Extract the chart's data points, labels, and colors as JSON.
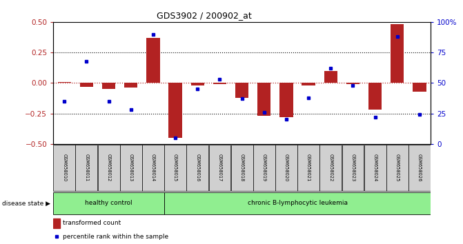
{
  "title": "GDS3902 / 200902_at",
  "samples": [
    "GSM658010",
    "GSM658011",
    "GSM658012",
    "GSM658013",
    "GSM658014",
    "GSM658015",
    "GSM658016",
    "GSM658017",
    "GSM658018",
    "GSM658019",
    "GSM658020",
    "GSM658021",
    "GSM658022",
    "GSM658023",
    "GSM658024",
    "GSM658025",
    "GSM658026"
  ],
  "transformed_count": [
    0.01,
    -0.03,
    -0.05,
    -0.04,
    0.37,
    -0.45,
    -0.02,
    -0.01,
    -0.12,
    -0.27,
    -0.28,
    -0.02,
    0.1,
    -0.01,
    -0.22,
    0.48,
    -0.07
  ],
  "percentile_rank": [
    35,
    68,
    35,
    28,
    90,
    5,
    45,
    53,
    37,
    26,
    20,
    38,
    62,
    48,
    22,
    88,
    24
  ],
  "group_labels": [
    "healthy control",
    "chronic B-lymphocytic leukemia"
  ],
  "healthy_count": 5,
  "bar_color": "#b22222",
  "dot_color": "#0000cc",
  "ylim_left": [
    -0.5,
    0.5
  ],
  "ylim_right": [
    0,
    100
  ],
  "yticks_left": [
    -0.5,
    -0.25,
    0.0,
    0.25,
    0.5
  ],
  "yticks_right": [
    0,
    25,
    50,
    75,
    100
  ],
  "ytick_labels_right": [
    "0",
    "25",
    "50",
    "75",
    "100%"
  ],
  "dotted_lines": [
    -0.25,
    0.25
  ],
  "disease_state_label": "disease state",
  "group_color": "#90ee90",
  "bg_color": "#ffffff"
}
